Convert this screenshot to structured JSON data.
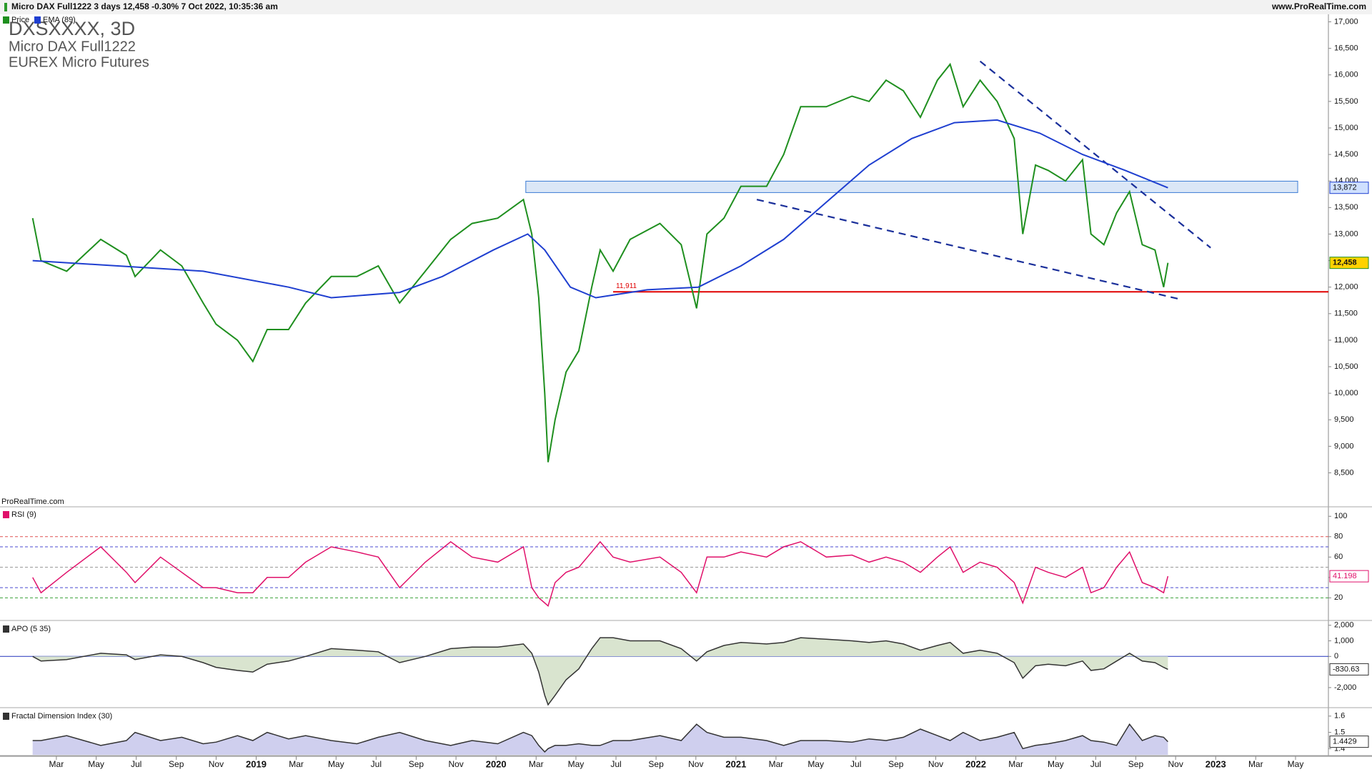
{
  "header": {
    "title": "Micro DAX Full1222 3 days 12,458 -0.30% 7 Oct 2022, 10:35:36 am",
    "site": "www.ProRealTime.com"
  },
  "watermark": "ProRealTime.com",
  "chart_data": [
    {
      "type": "line",
      "title": "DXSXXXX, 3D",
      "subtitle": [
        "Micro DAX Full1222",
        "EUREX Micro Futures"
      ],
      "xlim": [
        2017.932,
        2023.47
      ],
      "xticks": [
        {
          "value": 2018.167,
          "label": "Mar"
        },
        {
          "value": 2018.333,
          "label": "May"
        },
        {
          "value": 2018.5,
          "label": "Jul"
        },
        {
          "value": 2018.667,
          "label": "Sep"
        },
        {
          "value": 2018.833,
          "label": "Nov"
        },
        2019,
        {
          "value": 2019.167,
          "label": "Mar"
        },
        {
          "value": 2019.333,
          "label": "May"
        },
        {
          "value": 2019.5,
          "label": "Jul"
        },
        {
          "value": 2019.667,
          "label": "Sep"
        },
        {
          "value": 2019.833,
          "label": "Nov"
        },
        2020,
        {
          "value": 2020.167,
          "label": "Mar"
        },
        {
          "value": 2020.333,
          "label": "May"
        },
        {
          "value": 2020.5,
          "label": "Jul"
        },
        {
          "value": 2020.667,
          "label": "Sep"
        },
        {
          "value": 2020.833,
          "label": "Nov"
        },
        2021,
        {
          "value": 2021.167,
          "label": "Mar"
        },
        {
          "value": 2021.333,
          "label": "May"
        },
        {
          "value": 2021.5,
          "label": "Jul"
        },
        {
          "value": 2021.667,
          "label": "Sep"
        },
        {
          "value": 2021.833,
          "label": "Nov"
        },
        2022,
        {
          "value": 2022.167,
          "label": "Mar"
        },
        {
          "value": 2022.333,
          "label": "May"
        },
        {
          "value": 2022.5,
          "label": "Jul"
        },
        {
          "value": 2022.667,
          "label": "Sep"
        },
        {
          "value": 2022.833,
          "label": "Nov"
        },
        2023,
        {
          "value": 2023.167,
          "label": "Mar"
        },
        {
          "value": 2023.333,
          "label": "May"
        }
      ],
      "ylim": [
        7873,
        17115
      ],
      "yticks": [
        {
          "value": 8500,
          "label": "8,500"
        },
        {
          "value": 9000,
          "label": "9,000"
        },
        {
          "value": 9500,
          "label": "9,500"
        },
        {
          "value": 10000,
          "label": "10,000"
        },
        {
          "value": 10500,
          "label": "10,500"
        },
        {
          "value": 11000,
          "label": "11,000"
        },
        {
          "value": 11500,
          "label": "11,500"
        },
        {
          "value": 12000,
          "label": "12,000"
        },
        {
          "value": 12500,
          "label": "12,500"
        },
        {
          "value": 13000,
          "label": "13,000"
        },
        {
          "value": 13500,
          "label": "13,500"
        },
        {
          "value": 14000,
          "label": "14,000"
        },
        {
          "value": 14500,
          "label": "14,500"
        },
        {
          "value": 15000,
          "label": "15,000"
        },
        {
          "value": 15500,
          "label": "15,500"
        },
        {
          "value": 16000,
          "label": "16,000"
        },
        {
          "value": 16500,
          "label": "16,500"
        },
        {
          "value": 17000,
          "label": "17,000"
        }
      ],
      "box": {
        "x": [
          2020.124,
          2023.342
        ],
        "y": [
          13782,
          13997
        ],
        "color": "#3a7bd5"
      },
      "hlines": [
        {
          "value": 11911,
          "label": "11,911",
          "color": "#e00000"
        }
      ],
      "trendlines": [
        {
          "x": [
            2022.018,
            2022.979
          ],
          "y": [
            16257,
            12742
          ]
        },
        {
          "x": [
            2021.087,
            2022.854
          ],
          "y": [
            13650,
            11769
          ]
        }
      ],
      "trend_color": "#1a2f9a",
      "series": [
        {
          "name": "Price",
          "color": "#1f8f1f",
          "label_bg": "#ffd200",
          "last_label": "12,458",
          "x": [
            2018.068,
            2018.103,
            2018.21,
            2018.352,
            2018.459,
            2018.495,
            2018.601,
            2018.69,
            2018.779,
            2018.833,
            2018.922,
            2018.986,
            2019.046,
            2019.135,
            2019.206,
            2019.313,
            2019.42,
            2019.509,
            2019.598,
            2019.705,
            2019.811,
            2019.9,
            2020.007,
            2020.114,
            2020.149,
            2020.178,
            2020.203,
            2020.217,
            2020.246,
            2020.292,
            2020.345,
            2020.399,
            2020.434,
            2020.488,
            2020.559,
            2020.683,
            2020.772,
            2020.836,
            2020.879,
            2020.95,
            2021.021,
            2021.128,
            2021.199,
            2021.27,
            2021.377,
            2021.484,
            2021.555,
            2021.626,
            2021.698,
            2021.769,
            2021.84,
            2021.893,
            2021.947,
            2022.018,
            2022.089,
            2022.16,
            2022.196,
            2022.249,
            2022.302,
            2022.374,
            2022.445,
            2022.48,
            2022.534,
            2022.587,
            2022.641,
            2022.694,
            2022.747,
            2022.783,
            2022.801
          ],
          "values": [
            13300,
            12500,
            12300,
            12900,
            12600,
            12200,
            12700,
            12400,
            11700,
            11300,
            11000,
            10600,
            11200,
            11200,
            11700,
            12200,
            12200,
            12400,
            11700,
            12300,
            12900,
            13200,
            13300,
            13650,
            13000,
            11800,
            10000,
            8700,
            9500,
            10400,
            10800,
            12000,
            12700,
            12300,
            12900,
            13200,
            12800,
            11600,
            13000,
            13300,
            13900,
            13900,
            14500,
            15400,
            15400,
            15600,
            15500,
            15900,
            15700,
            15200,
            15900,
            16200,
            15400,
            15900,
            15500,
            14800,
            13000,
            14300,
            14200,
            14000,
            14400,
            13000,
            12800,
            13400,
            13800,
            12800,
            12700,
            12000,
            12458
          ]
        },
        {
          "name": "EMA (89)",
          "color": "#1f3fd0",
          "label_bg": "#cfe0ff",
          "last_label": "13,872",
          "x": [
            2018.068,
            2018.423,
            2018.779,
            2019.135,
            2019.313,
            2019.598,
            2019.776,
            2019.989,
            2020.132,
            2020.203,
            2020.31,
            2020.416,
            2020.63,
            2020.843,
            2021.021,
            2021.199,
            2021.377,
            2021.555,
            2021.733,
            2021.911,
            2022.089,
            2022.267,
            2022.445,
            2022.623,
            2022.801
          ],
          "values": [
            12500,
            12400,
            12300,
            12000,
            11800,
            11900,
            12200,
            12700,
            13000,
            12700,
            12000,
            11800,
            11950,
            12000,
            12400,
            12900,
            13600,
            14300,
            14800,
            15100,
            15150,
            14900,
            14500,
            14200,
            13872
          ]
        }
      ]
    },
    {
      "type": "line",
      "ylim": [
        -1.5,
        108.6
      ],
      "yticks": [
        20,
        40,
        60,
        80,
        100
      ],
      "levels": [
        {
          "value": 80,
          "color": "#e05050"
        },
        {
          "value": 70,
          "color": "#4a4ad0"
        },
        {
          "value": 50,
          "color": "#999999"
        },
        {
          "value": 30,
          "color": "#4a4ad0"
        },
        {
          "value": 20,
          "color": "#3aa03a"
        }
      ],
      "series": [
        {
          "name": "RSI (9)",
          "color": "#e0106a",
          "label_bg": "#ffffff",
          "values": [
            40,
            25,
            45,
            70,
            45,
            35,
            60,
            45,
            30,
            30,
            25,
            25,
            40,
            40,
            55,
            70,
            65,
            60,
            30,
            55,
            75,
            60,
            55,
            70,
            30,
            20,
            15,
            12,
            35,
            45,
            50,
            65,
            75,
            60,
            55,
            60,
            45,
            25,
            60,
            60,
            65,
            60,
            70,
            75,
            60,
            62,
            55,
            60,
            55,
            45,
            60,
            70,
            45,
            55,
            50,
            35,
            15,
            50,
            45,
            40,
            50,
            25,
            30,
            50,
            65,
            35,
            30,
            25,
            41.198
          ]
        }
      ]
    },
    {
      "type": "area",
      "ylim": [
        -3243,
        2216
      ],
      "yticks": [
        {
          "value": -2000,
          "label": "-2,000"
        },
        0,
        {
          "value": 1000,
          "label": "1,000"
        },
        {
          "value": 2000,
          "label": "2,000"
        }
      ],
      "levels": [
        {
          "value": 0,
          "color": "#2233bb"
        }
      ],
      "series": [
        {
          "name": "APO (5 35)",
          "color": "#333333",
          "fill": "#d9e4cf",
          "label_bg": "#ffffff",
          "values": [
            0,
            -300,
            -200,
            200,
            100,
            -200,
            100,
            0,
            -400,
            -700,
            -900,
            -1000,
            -500,
            -300,
            0,
            500,
            400,
            300,
            -400,
            0,
            500,
            600,
            600,
            800,
            200,
            -1000,
            -2500,
            -3100,
            -2500,
            -1500,
            -800,
            500,
            1200,
            1200,
            1000,
            1000,
            500,
            -300,
            300,
            700,
            900,
            800,
            900,
            1200,
            1100,
            1000,
            900,
            1000,
            800,
            400,
            700,
            900,
            200,
            400,
            200,
            -400,
            -1400,
            -600,
            -500,
            -600,
            -300,
            -900,
            -800,
            -300,
            200,
            -300,
            -400,
            -700,
            -830.63
          ]
        }
      ]
    },
    {
      "type": "area",
      "ylim": [
        1.362,
        1.643
      ],
      "yticks": [
        1.4,
        1.5,
        1.6
      ],
      "series": [
        {
          "name": "Fractal Dimension Index (30)",
          "color": "#333333",
          "fill": "#cfcfee",
          "label_bg": "#ffffff",
          "values": [
            1.45,
            1.45,
            1.48,
            1.42,
            1.45,
            1.5,
            1.45,
            1.47,
            1.43,
            1.44,
            1.48,
            1.45,
            1.5,
            1.46,
            1.48,
            1.45,
            1.43,
            1.47,
            1.5,
            1.45,
            1.42,
            1.45,
            1.43,
            1.5,
            1.48,
            1.42,
            1.38,
            1.4,
            1.42,
            1.42,
            1.43,
            1.42,
            1.42,
            1.45,
            1.45,
            1.48,
            1.45,
            1.55,
            1.5,
            1.47,
            1.47,
            1.45,
            1.42,
            1.45,
            1.45,
            1.44,
            1.46,
            1.45,
            1.47,
            1.52,
            1.48,
            1.45,
            1.5,
            1.45,
            1.47,
            1.5,
            1.4,
            1.42,
            1.43,
            1.45,
            1.48,
            1.45,
            1.44,
            1.42,
            1.55,
            1.45,
            1.48,
            1.47,
            1.4429
          ]
        }
      ]
    }
  ]
}
